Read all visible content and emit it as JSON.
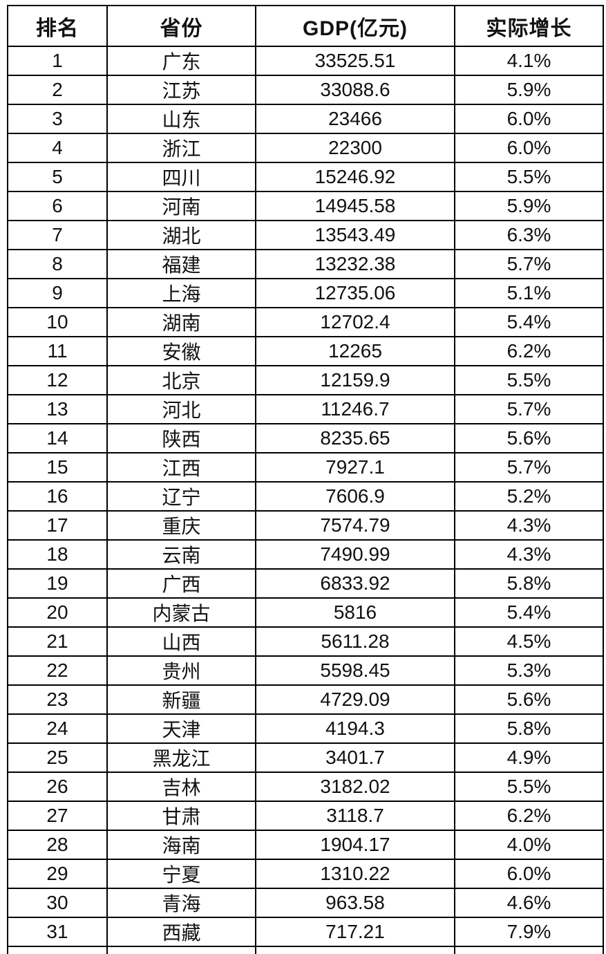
{
  "colors": {
    "background": "#ffffff",
    "border": "#000000",
    "text": "#111111"
  },
  "chart_data": {
    "type": "table",
    "title": "",
    "columns": [
      "排名",
      "省份",
      "GDP(亿元)",
      "实际增长"
    ],
    "rows": [
      {
        "rank": "1",
        "province": "广东",
        "gdp": "33525.51",
        "growth": "4.1%"
      },
      {
        "rank": "2",
        "province": "江苏",
        "gdp": "33088.6",
        "growth": "5.9%"
      },
      {
        "rank": "3",
        "province": "山东",
        "gdp": "23466",
        "growth": "6.0%"
      },
      {
        "rank": "4",
        "province": "浙江",
        "gdp": "22300",
        "growth": "6.0%"
      },
      {
        "rank": "5",
        "province": "四川",
        "gdp": "15246.92",
        "growth": "5.5%"
      },
      {
        "rank": "6",
        "province": "河南",
        "gdp": "14945.58",
        "growth": "5.9%"
      },
      {
        "rank": "7",
        "province": "湖北",
        "gdp": "13543.49",
        "growth": "6.3%"
      },
      {
        "rank": "8",
        "province": "福建",
        "gdp": "13232.38",
        "growth": "5.7%"
      },
      {
        "rank": "9",
        "province": "上海",
        "gdp": "12735.06",
        "growth": "5.1%"
      },
      {
        "rank": "10",
        "province": "湖南",
        "gdp": "12702.4",
        "growth": "5.4%"
      },
      {
        "rank": "11",
        "province": "安徽",
        "gdp": "12265",
        "growth": "6.2%"
      },
      {
        "rank": "12",
        "province": "北京",
        "gdp": "12159.9",
        "growth": "5.5%"
      },
      {
        "rank": "13",
        "province": "河北",
        "gdp": "11246.7",
        "growth": "5.7%"
      },
      {
        "rank": "14",
        "province": "陕西",
        "gdp": "8235.65",
        "growth": "5.6%"
      },
      {
        "rank": "15",
        "province": "江西",
        "gdp": "7927.1",
        "growth": "5.7%"
      },
      {
        "rank": "16",
        "province": "辽宁",
        "gdp": "7606.9",
        "growth": "5.2%"
      },
      {
        "rank": "17",
        "province": "重庆",
        "gdp": "7574.79",
        "growth": "4.3%"
      },
      {
        "rank": "18",
        "province": "云南",
        "gdp": "7490.99",
        "growth": "4.3%"
      },
      {
        "rank": "19",
        "province": "广西",
        "gdp": "6833.92",
        "growth": "5.8%"
      },
      {
        "rank": "20",
        "province": "内蒙古",
        "gdp": "5816",
        "growth": "5.4%"
      },
      {
        "rank": "21",
        "province": "山西",
        "gdp": "5611.28",
        "growth": "4.5%"
      },
      {
        "rank": "22",
        "province": "贵州",
        "gdp": "5598.45",
        "growth": "5.3%"
      },
      {
        "rank": "23",
        "province": "新疆",
        "gdp": "4729.09",
        "growth": "5.6%"
      },
      {
        "rank": "24",
        "province": "天津",
        "gdp": "4194.3",
        "growth": "5.8%"
      },
      {
        "rank": "25",
        "province": "黑龙江",
        "gdp": "3401.7",
        "growth": "4.9%"
      },
      {
        "rank": "26",
        "province": "吉林",
        "gdp": "3182.02",
        "growth": "5.5%"
      },
      {
        "rank": "27",
        "province": "甘肃",
        "gdp": "3118.7",
        "growth": "6.2%"
      },
      {
        "rank": "28",
        "province": "海南",
        "gdp": "1904.17",
        "growth": "4.0%"
      },
      {
        "rank": "29",
        "province": "宁夏",
        "gdp": "1310.22",
        "growth": "6.0%"
      },
      {
        "rank": "30",
        "province": "青海",
        "gdp": "963.58",
        "growth": "4.6%"
      },
      {
        "rank": "31",
        "province": "西藏",
        "gdp": "717.21",
        "growth": "7.9%"
      }
    ]
  }
}
